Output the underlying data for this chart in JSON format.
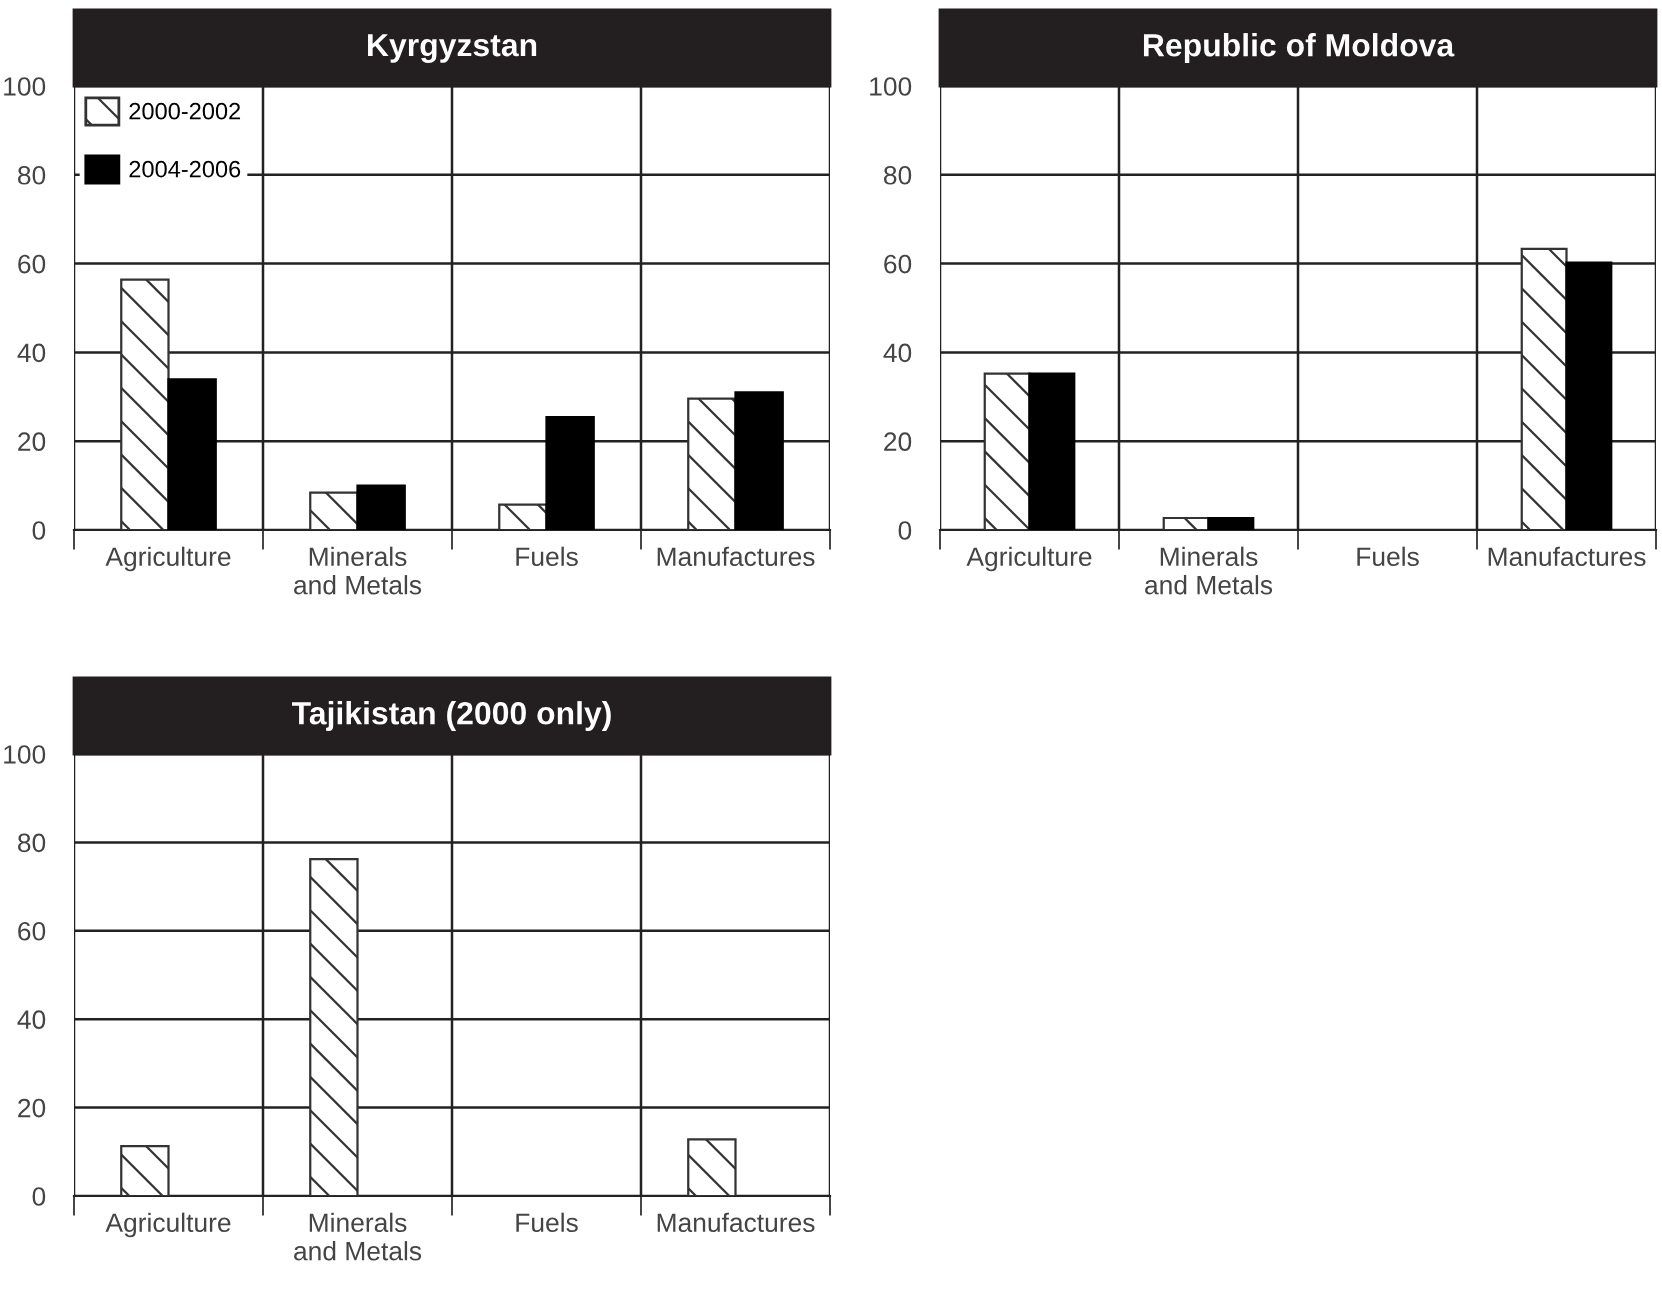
{
  "chart_data": [
    {
      "type": "bar",
      "title": "Kyrgyzstan",
      "categories": [
        "Agriculture",
        "Minerals\nand Metals",
        "Fuels",
        "Manufactures"
      ],
      "series": [
        {
          "name": "2000-2002",
          "color": "#333333",
          "values": [
            56.4,
            8.4,
            5.7,
            29.6
          ]
        },
        {
          "name": "2004-2006",
          "color": "#000000",
          "values": [
            33.9,
            10,
            25.4,
            31
          ]
        }
      ],
      "ylim": [
        0,
        100
      ],
      "yticks": [
        0,
        20,
        40,
        60,
        80,
        100
      ],
      "grid": true,
      "legend": "top left"
    },
    {
      "type": "bar",
      "title": "Republic of Moldova",
      "categories": [
        "Agriculture",
        "Minerals\nand Metals",
        "Fuels",
        "Manufactures"
      ],
      "series": [
        {
          "color": "#333333",
          "values": [
            35.2,
            2.7,
            null,
            63.3
          ]
        },
        {
          "color": "#000000",
          "values": [
            35.2,
            2.7,
            null,
            60.2
          ]
        }
      ],
      "ylim": [
        0,
        100
      ],
      "yticks": [
        0,
        20,
        40,
        60,
        80,
        100
      ],
      "grid": true
    },
    {
      "type": "bar",
      "title": "Tajikistan (2000 only)",
      "categories": [
        "Agriculture",
        "Minerals\nand Metals",
        "Fuels",
        "Manufactures"
      ],
      "series": [
        {
          "color": "#333333",
          "values": [
            11.3,
            76.2,
            null,
            12.8
          ]
        },
        {
          "color": "#000000",
          "values": [
            null,
            null,
            null,
            null
          ]
        }
      ],
      "ylim": [
        0,
        100
      ],
      "yticks": [
        0,
        20,
        40,
        60,
        80,
        100
      ],
      "grid": true
    }
  ]
}
